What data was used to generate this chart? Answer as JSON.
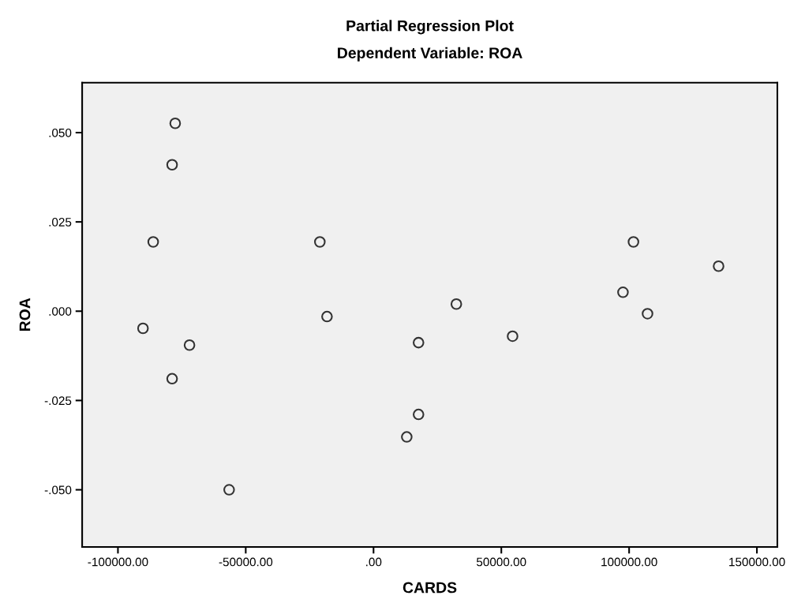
{
  "chart_data": {
    "type": "scatter",
    "title": "Partial Regression Plot",
    "subtitle": "Dependent Variable: ROA",
    "xlabel": "CARDS",
    "ylabel": "ROA",
    "x": [
      -77600,
      -78800,
      -86200,
      -90200,
      -72000,
      -78800,
      -56500,
      -21000,
      -18200,
      17600,
      17600,
      13000,
      32400,
      54400,
      97600,
      101700,
      107200,
      135000
    ],
    "series": [
      {
        "color": "#333333",
        "values": [
          0.0526,
          0.041,
          0.0194,
          -0.0048,
          -0.0095,
          -0.0189,
          -0.05,
          0.0194,
          -0.0015,
          -0.0088,
          -0.0289,
          -0.0352,
          0.002,
          -0.007,
          0.0053,
          0.0194,
          -0.0007,
          0.0126
        ]
      }
    ],
    "xlim": [
      -114000,
      158000
    ],
    "ylim": [
      -0.066,
      0.064
    ],
    "xticks": [
      {
        "value": -100000,
        "label": "-100000.00"
      },
      {
        "value": -50000,
        "label": "-50000.00"
      },
      {
        "value": 0,
        "label": ".00"
      },
      {
        "value": 50000,
        "label": "50000.00"
      },
      {
        "value": 100000,
        "label": "100000.00"
      },
      {
        "value": 150000,
        "label": "150000.00"
      }
    ],
    "yticks": [
      {
        "value": -0.05,
        "label": "-.050"
      },
      {
        "value": -0.025,
        "label": "-.025"
      },
      {
        "value": 0,
        "label": ".000"
      },
      {
        "value": 0.025,
        "label": ".025"
      },
      {
        "value": 0.05,
        "label": ".050"
      }
    ],
    "marker": "circle",
    "grid": false,
    "legend": false
  }
}
